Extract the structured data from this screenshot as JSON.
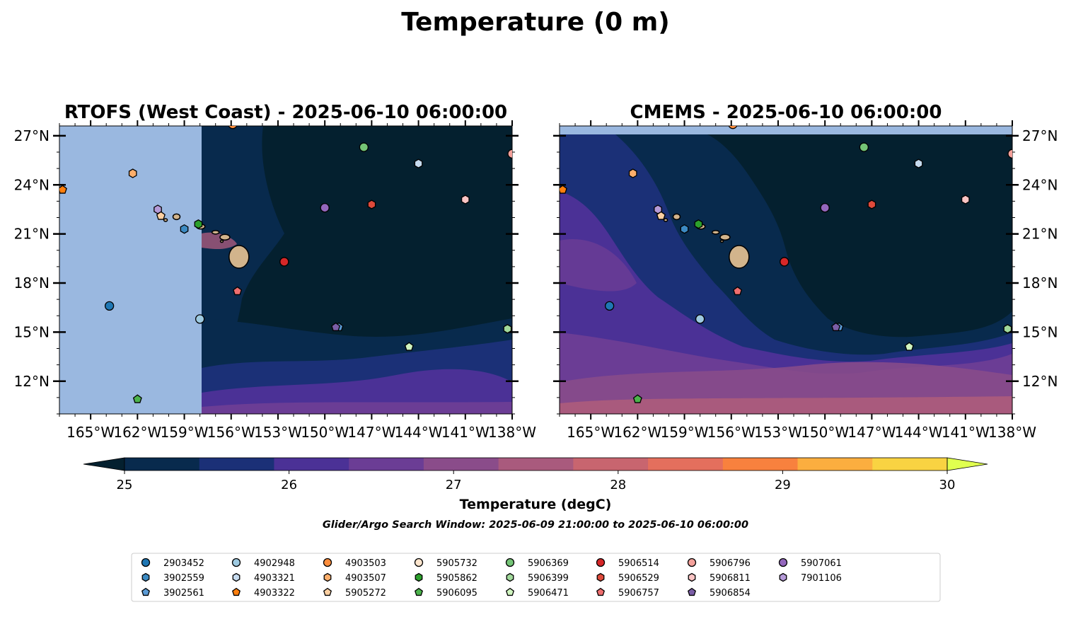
{
  "figure_title": "Temperature (0 m)",
  "search_window": "Glider/Argo Search Window: 2025-06-09 21:00:00 to 2025-06-10 06:00:00",
  "colors": {
    "nodata": "#9ab8e0",
    "land": "#d2b48c",
    "levels": [
      "#04202f",
      "#082a4d",
      "#1b3077",
      "#4b3196",
      "#6b3d95",
      "#8a4c8a",
      "#a95a7d",
      "#c8656f",
      "#e46f5d",
      "#f8813e",
      "#fbae3f",
      "#f9d342",
      "#e0ff4f"
    ]
  },
  "colorbar": {
    "label": "Temperature (degC)",
    "ticks": [
      "25",
      "26",
      "27",
      "28",
      "29",
      "30"
    ],
    "range": [
      25,
      30
    ],
    "step": 0.5,
    "extend": "both"
  },
  "axes": {
    "lon_range": [
      -167,
      -138
    ],
    "lat_range": [
      10,
      27.6
    ],
    "xticks": [
      -165,
      -162,
      -159,
      -156,
      -153,
      -150,
      -147,
      -144,
      -141,
      -138
    ],
    "xtick_labels": [
      "165°W",
      "162°W",
      "159°W",
      "156°W",
      "153°W",
      "150°W",
      "147°W",
      "144°W",
      "141°W",
      "138°W"
    ],
    "yticks": [
      12,
      15,
      18,
      21,
      24,
      27
    ],
    "ytick_labels": [
      "12°N",
      "15°N",
      "18°N",
      "21°N",
      "24°N",
      "27°N"
    ]
  },
  "panels": [
    {
      "id": "rtofs",
      "title": "RTOFS (West Coast) - 2025-06-10 06:00:00",
      "ylabels": "left",
      "data_lon_min": -157.9
    },
    {
      "id": "cmems",
      "title": "CMEMS - 2025-06-10 06:00:00",
      "ylabels": "right",
      "data_lat_max": 27.05
    }
  ],
  "chart_data": {
    "type": "scatter",
    "title": "Temperature (0 m)",
    "x_quantity": "longitude",
    "y_quantity": "latitude",
    "series": [
      {
        "name": "2903452",
        "marker": "circle",
        "color": "#1f77b4",
        "x": [
          -163.8
        ],
        "y": [
          16.6
        ]
      },
      {
        "name": "3902559",
        "marker": "hexagon",
        "color": "#3c8ac2",
        "x": [
          -159.0
        ],
        "y": [
          21.3
        ]
      },
      {
        "name": "3902561",
        "marker": "pentagon",
        "color": "#5b9bd5",
        "x": [
          -149.1
        ],
        "y": [
          15.3
        ]
      },
      {
        "name": "4902948",
        "marker": "circle",
        "color": "#9ecae1",
        "x": [
          -158.0
        ],
        "y": [
          15.8
        ]
      },
      {
        "name": "4903321",
        "marker": "hexagon",
        "color": "#c6dbef",
        "x": [
          -144.0
        ],
        "y": [
          25.3
        ]
      },
      {
        "name": "4903322",
        "marker": "pentagon",
        "color": "#ff7f0e",
        "x": [
          -166.8
        ],
        "y": [
          23.7
        ]
      },
      {
        "name": "4903503",
        "marker": "circle",
        "color": "#fd8d3c",
        "x": [
          -155.9
        ],
        "y": [
          27.7
        ]
      },
      {
        "name": "4903507",
        "marker": "hexagon",
        "color": "#fdae6b",
        "x": [
          -162.3
        ],
        "y": [
          24.7
        ]
      },
      {
        "name": "5905272",
        "marker": "pentagon",
        "color": "#fdd0a2",
        "x": [
          -160.5
        ],
        "y": [
          22.1
        ]
      },
      {
        "name": "5905732",
        "marker": "circle",
        "color": "#fee6ce",
        "x": [
          -152.6
        ],
        "y": [
          19.3
        ]
      },
      {
        "name": "5905862",
        "marker": "hexagon",
        "color": "#2ca02c",
        "x": [
          -158.1
        ],
        "y": [
          21.6
        ]
      },
      {
        "name": "5906095",
        "marker": "pentagon",
        "color": "#4cb34c",
        "x": [
          -162.0
        ],
        "y": [
          10.9
        ]
      },
      {
        "name": "5906369",
        "marker": "circle",
        "color": "#74c476",
        "x": [
          -147.5
        ],
        "y": [
          26.3
        ]
      },
      {
        "name": "5906399",
        "marker": "hexagon",
        "color": "#a1d99b",
        "x": [
          -138.3
        ],
        "y": [
          15.2
        ]
      },
      {
        "name": "5906471",
        "marker": "pentagon",
        "color": "#d0f5c0",
        "x": [
          -144.6
        ],
        "y": [
          14.1
        ]
      },
      {
        "name": "5906514",
        "marker": "circle",
        "color": "#d62728",
        "x": [
          -152.6
        ],
        "y": [
          19.3
        ]
      },
      {
        "name": "5906529",
        "marker": "hexagon",
        "color": "#de4a3b",
        "x": [
          -147.0
        ],
        "y": [
          22.8
        ]
      },
      {
        "name": "5906757",
        "marker": "pentagon",
        "color": "#ef6e6e",
        "x": [
          -155.6
        ],
        "y": [
          17.5
        ]
      },
      {
        "name": "5906796",
        "marker": "circle",
        "color": "#f4a19b",
        "x": [
          -138.0
        ],
        "y": [
          25.9
        ]
      },
      {
        "name": "5906811",
        "marker": "hexagon",
        "color": "#fbc4c4",
        "x": [
          -141.0
        ],
        "y": [
          23.1
        ]
      },
      {
        "name": "5906854",
        "marker": "pentagon",
        "color": "#7b5ea7",
        "x": [
          -149.3
        ],
        "y": [
          15.3
        ]
      },
      {
        "name": "5907061",
        "marker": "circle",
        "color": "#9467bd",
        "x": [
          -150.0
        ],
        "y": [
          22.6
        ]
      },
      {
        "name": "7901106",
        "marker": "hexagon",
        "color": "#b59ad8",
        "x": [
          -160.7
        ],
        "y": [
          22.5
        ]
      }
    ],
    "legend_placement": "bottom-center",
    "legend_ncol": 9
  }
}
